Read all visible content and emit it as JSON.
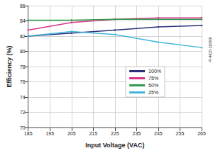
{
  "chart_data": {
    "type": "line",
    "x_label": "Input Voltage (VAC)",
    "y_label": "Efficiency (%)",
    "annotation": "PI-4625-110606",
    "x": [
      185,
      205,
      225,
      245,
      265
    ],
    "series": [
      {
        "name": "100%",
        "color": "#2b2f7a",
        "values": [
          82.0,
          82.4,
          82.8,
          83.2,
          83.4
        ]
      },
      {
        "name": "75%",
        "color": "#d6338a",
        "values": [
          82.8,
          83.8,
          84.2,
          84.4,
          84.4
        ]
      },
      {
        "name": "50%",
        "color": "#2e9a4a",
        "values": [
          84.1,
          84.1,
          84.2,
          84.2,
          84.2
        ]
      },
      {
        "name": "25%",
        "color": "#3fb6d9",
        "values": [
          82.0,
          82.6,
          82.2,
          81.2,
          80.5
        ]
      }
    ],
    "xlim": [
      185,
      265
    ],
    "xticks": [
      185,
      195,
      205,
      215,
      225,
      235,
      245,
      255,
      265
    ],
    "ylim": [
      70,
      86
    ],
    "yticks": [
      70,
      72,
      74,
      76,
      78,
      80,
      82,
      84,
      86
    ],
    "grid": true,
    "legend": "right",
    "marker": "diamond"
  }
}
